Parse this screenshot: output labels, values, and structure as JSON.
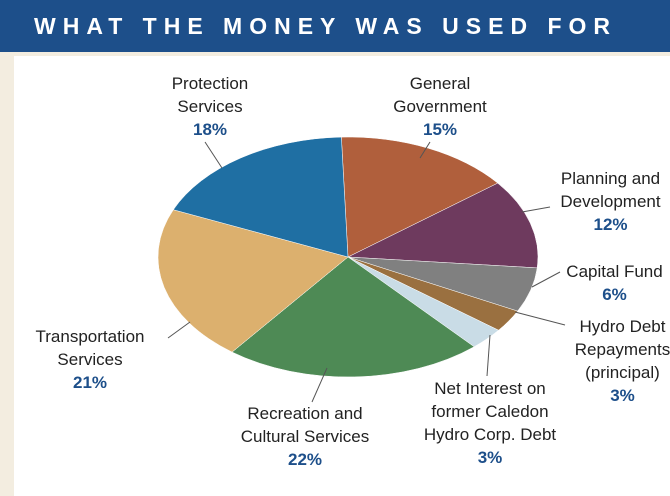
{
  "chart_data": {
    "type": "pie",
    "title": "WHAT THE MONEY WAS USED FOR",
    "categories": [
      "General Government",
      "Planning and Development",
      "Capital Fund",
      "Hydro Debt Repayments (principal)",
      "Net Interest on former Caledon Hydro Corp. Debt",
      "Recreation and Cultural Services",
      "Transportation Services",
      "Protection Services"
    ],
    "values": [
      15,
      12,
      6,
      3,
      3,
      22,
      21,
      18
    ],
    "value_labels": [
      "15%",
      "12%",
      "6%",
      "3%",
      "3%",
      "22%",
      "21%",
      "18%"
    ],
    "colors": [
      "#b05f3c",
      "#6e3a5e",
      "#808080",
      "#9a7040",
      "#c9dce6",
      "#4e8a55",
      "#dcb06e",
      "#1f6fa3"
    ]
  }
}
